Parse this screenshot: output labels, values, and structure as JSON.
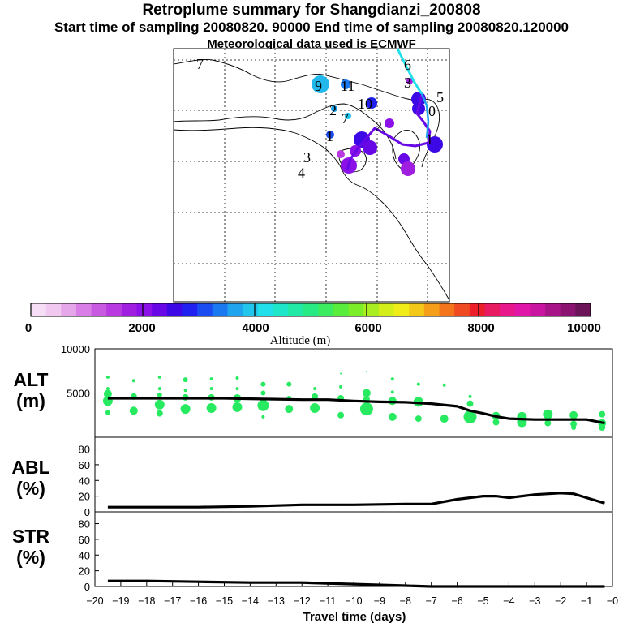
{
  "header": {
    "title": "Retroplume summary for Shangdianzi_200808",
    "sampling": "Start time of sampling 20080820. 90000     End time of sampling 20080820.120000",
    "meteo": "Meteorological data used is ECMWF"
  },
  "map": {
    "day_labels": [
      {
        "label": "7"
      },
      {
        "label": "9"
      },
      {
        "label": "11"
      },
      {
        "label": "10"
      },
      {
        "label": "2"
      },
      {
        "label": "7"
      },
      {
        "label": "1"
      },
      {
        "label": "3"
      },
      {
        "label": "4"
      },
      {
        "label": "6"
      },
      {
        "label": "3"
      },
      {
        "label": "5"
      },
      {
        "label": "0"
      },
      {
        "label": "1"
      },
      {
        "label": "2"
      }
    ]
  },
  "colorbar": {
    "title": "Altitude (m)",
    "tick_labels": [
      "0",
      "2000",
      "4000",
      "6000",
      "8000",
      "10000"
    ],
    "colors": [
      "#f6dff6",
      "#f0c8f0",
      "#e6a6ea",
      "#d97ee6",
      "#c85ae2",
      "#b83ae0",
      "#a01ee0",
      "#8c10e8",
      "#6808e6",
      "#3c08e6",
      "#2020f0",
      "#1a4cf2",
      "#1a78f0",
      "#20a4ee",
      "#22c6ec",
      "#22e0ea",
      "#1ee6c8",
      "#22eaa6",
      "#28ea84",
      "#3cec60",
      "#58ec3c",
      "#7cee28",
      "#a8ee20",
      "#d4ee1a",
      "#f0ec18",
      "#f4c818",
      "#f49e1a",
      "#f4741c",
      "#f04a22",
      "#ec1e2a",
      "#e81a60",
      "#e8188c",
      "#e016a8",
      "#c814a0",
      "#a81488",
      "#8a1470",
      "#6c1458"
    ]
  },
  "chart_data": [
    {
      "type": "line",
      "panel": "ALT",
      "ylabel": "ALT\n(m)",
      "ylabel_line1": "ALT",
      "ylabel_line2": "(m)",
      "ylim": [
        0,
        10000
      ],
      "yticks": [
        {
          "v": 5000,
          "label": "5000"
        },
        {
          "v": 10000,
          "label": "10000"
        }
      ],
      "x": [
        -19.5,
        -19,
        -18,
        -17,
        -16,
        -15,
        -14,
        -13,
        -12,
        -11,
        -10,
        -9,
        -8,
        -7,
        -6,
        -5.5,
        -5,
        -4.5,
        -4,
        -3,
        -2,
        -1,
        -0.3
      ],
      "values": [
        4400,
        4400,
        4400,
        4400,
        4400,
        4400,
        4350,
        4300,
        4250,
        4250,
        4100,
        4000,
        3950,
        3800,
        3500,
        3000,
        2700,
        2350,
        2100,
        2000,
        2000,
        2000,
        1600
      ],
      "scatter": [
        [
          -19.5,
          6800,
          2
        ],
        [
          -19.5,
          5500,
          2
        ],
        [
          -19.5,
          4900,
          5
        ],
        [
          -19.5,
          4100,
          6
        ],
        [
          -19.5,
          2800,
          3
        ],
        [
          -18.5,
          6400,
          2
        ],
        [
          -18.5,
          4600,
          4
        ],
        [
          -18.5,
          3000,
          5
        ],
        [
          -17.5,
          6800,
          2
        ],
        [
          -17.5,
          5500,
          2
        ],
        [
          -17.5,
          4800,
          3
        ],
        [
          -17.5,
          3700,
          6
        ],
        [
          -17.5,
          2700,
          4
        ],
        [
          -16.5,
          6500,
          3
        ],
        [
          -16.5,
          5300,
          2
        ],
        [
          -16.5,
          4500,
          4
        ],
        [
          -16.5,
          3200,
          6
        ],
        [
          -15.5,
          6600,
          2
        ],
        [
          -15.5,
          5500,
          2
        ],
        [
          -15.5,
          4500,
          4
        ],
        [
          -15.5,
          3300,
          6
        ],
        [
          -14.5,
          6700,
          2
        ],
        [
          -14.5,
          5500,
          2
        ],
        [
          -14.5,
          4400,
          5
        ],
        [
          -14.5,
          3400,
          6
        ],
        [
          -13.5,
          6000,
          3
        ],
        [
          -13.5,
          5000,
          3
        ],
        [
          -13.5,
          3600,
          7
        ],
        [
          -13.5,
          2300,
          2
        ],
        [
          -12.5,
          6000,
          3
        ],
        [
          -12.5,
          4400,
          3
        ],
        [
          -12.5,
          3200,
          5
        ],
        [
          -11.5,
          5500,
          2
        ],
        [
          -11.5,
          4600,
          4
        ],
        [
          -11.5,
          3300,
          6
        ],
        [
          -10.5,
          5700,
          2
        ],
        [
          -10.5,
          4400,
          4
        ],
        [
          -10.5,
          2500,
          4
        ],
        [
          -10.5,
          7200,
          1
        ],
        [
          -9.5,
          5000,
          5
        ],
        [
          -9.5,
          4300,
          4
        ],
        [
          -9.5,
          3200,
          8
        ],
        [
          -9.5,
          7400,
          1
        ],
        [
          -8.5,
          6600,
          2
        ],
        [
          -8.5,
          5100,
          2
        ],
        [
          -8.5,
          4100,
          5
        ],
        [
          -8.5,
          2300,
          5
        ],
        [
          -7.5,
          6000,
          2
        ],
        [
          -7.5,
          4000,
          6
        ],
        [
          -7.5,
          2100,
          4
        ],
        [
          -6.5,
          5900,
          2
        ],
        [
          -6.5,
          2100,
          5
        ],
        [
          -5.5,
          4600,
          2
        ],
        [
          -5.5,
          3800,
          4
        ],
        [
          -5.5,
          2300,
          8
        ],
        [
          -4.5,
          2400,
          5
        ],
        [
          -4.5,
          1700,
          4
        ],
        [
          -3.5,
          2300,
          6
        ],
        [
          -3.5,
          1700,
          6
        ],
        [
          -2.5,
          2600,
          6
        ],
        [
          -2.5,
          1600,
          4
        ],
        [
          -1.5,
          2500,
          5
        ],
        [
          -1.5,
          1500,
          4
        ],
        [
          -1.5,
          1100,
          3
        ],
        [
          -0.4,
          2600,
          4
        ],
        [
          -0.4,
          1600,
          5
        ],
        [
          -0.4,
          1100,
          4
        ]
      ]
    },
    {
      "type": "line",
      "panel": "ABL",
      "ylabel": "ABL\n(%)",
      "ylabel_line1": "ABL",
      "ylabel_line2": "(%)",
      "ylim": [
        0,
        95
      ],
      "yticks": [
        {
          "v": 0,
          "label": "0"
        },
        {
          "v": 20,
          "label": "20"
        },
        {
          "v": 40,
          "label": "40"
        },
        {
          "v": 60,
          "label": "60"
        },
        {
          "v": 80,
          "label": "80"
        }
      ],
      "x": [
        -19.5,
        -18,
        -16,
        -14,
        -12,
        -10,
        -8,
        -7,
        -6,
        -5,
        -4.5,
        -4,
        -3,
        -2,
        -1.5,
        -1,
        -0.3
      ],
      "values": [
        6,
        6,
        6,
        7,
        9,
        9,
        10,
        10,
        16,
        20,
        20,
        18,
        22,
        24,
        23,
        18,
        11
      ]
    },
    {
      "type": "line",
      "panel": "STR",
      "ylabel": "STR\n(%)",
      "ylabel_line1": "STR",
      "ylabel_line2": "(%)",
      "ylim": [
        0,
        95
      ],
      "yticks": [
        {
          "v": 0,
          "label": "0"
        },
        {
          "v": 20,
          "label": "20"
        },
        {
          "v": 40,
          "label": "40"
        },
        {
          "v": 60,
          "label": "60"
        },
        {
          "v": 80,
          "label": "80"
        }
      ],
      "x": [
        -19.5,
        -18,
        -16,
        -14,
        -12,
        -10,
        -8,
        -7,
        -6,
        -4,
        -2,
        -0.3
      ],
      "values": [
        7,
        7,
        6,
        5,
        5,
        3,
        1,
        0,
        0,
        0,
        0,
        0
      ]
    },
    {
      "type": "axis",
      "xlabel": "Travel time (days)",
      "xlim": [
        -20,
        0
      ],
      "xtick_labels": [
        "−20",
        "−19",
        "−18",
        "−17",
        "−16",
        "−15",
        "−14",
        "−13",
        "−12",
        "−11",
        "−10",
        "−9",
        "−8",
        "−7",
        "−6",
        "−5",
        "−4",
        "−3",
        "−2",
        "−1",
        "−0"
      ]
    }
  ]
}
